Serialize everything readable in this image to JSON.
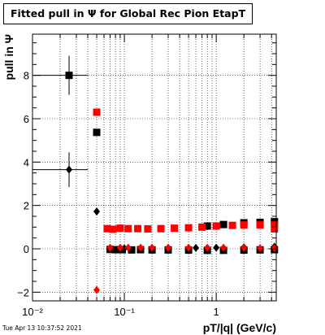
{
  "header": {
    "title": "Fitted pull in Ψ  for Global Rec Pion EtapT"
  },
  "footer": {
    "timestamp": "Tue Apr 13 10:37:52 2021"
  },
  "chart_data": {
    "type": "scatter",
    "title": "Fitted pull in Ψ  for Global Rec Pion EtapT",
    "xlabel": "pT/|q| (GeV/c)",
    "ylabel": "pull in  Ψ",
    "xscale": "log",
    "xlim": [
      0.01,
      4.5
    ],
    "ylim": [
      -2.4,
      9.9
    ],
    "grid": true,
    "x_tick_labels": [
      "10⁻²",
      "10⁻¹",
      "1"
    ],
    "y_tick_labels": [
      "−2",
      "0",
      "2",
      "4",
      "6",
      "8"
    ],
    "series": [
      {
        "marker": "square",
        "color": "#000000",
        "points": [
          {
            "x": 0.025,
            "y": 8.0,
            "xerr": [
              0.01,
              0.04
            ],
            "yerr": 0.9
          },
          {
            "x": 0.05,
            "y": 5.37
          },
          {
            "x": 0.07,
            "y": -0.03
          },
          {
            "x": 0.08,
            "y": -0.04
          },
          {
            "x": 0.095,
            "y": -0.04
          },
          {
            "x": 0.12,
            "y": -0.05
          },
          {
            "x": 0.15,
            "y": -0.04
          },
          {
            "x": 0.2,
            "y": -0.05
          },
          {
            "x": 0.3,
            "y": -0.05
          },
          {
            "x": 0.5,
            "y": -0.06
          },
          {
            "x": 0.8,
            "y": -0.07
          },
          {
            "x": 1.2,
            "y": -0.07
          },
          {
            "x": 2.0,
            "y": -0.06
          },
          {
            "x": 3.0,
            "y": -0.05
          },
          {
            "x": 4.3,
            "y": -0.04
          },
          {
            "x": 0.8,
            "y": 1.05
          },
          {
            "x": 1.2,
            "y": 1.12
          },
          {
            "x": 2.0,
            "y": 1.2
          },
          {
            "x": 3.0,
            "y": 1.22
          },
          {
            "x": 4.3,
            "y": 1.25
          }
        ]
      },
      {
        "marker": "diamond",
        "color": "#000000",
        "points": [
          {
            "x": 0.025,
            "y": 3.65,
            "xerr": [
              0.01,
              0.04
            ],
            "yerr": 0.8
          },
          {
            "x": 0.05,
            "y": 1.72
          },
          {
            "x": 0.07,
            "y": 0.02
          },
          {
            "x": 0.1,
            "y": 0.02
          },
          {
            "x": 0.15,
            "y": 0.03
          },
          {
            "x": 0.3,
            "y": 0.03
          },
          {
            "x": 0.6,
            "y": 0.04
          },
          {
            "x": 1.0,
            "y": 0.05
          },
          {
            "x": 2.0,
            "y": 0.07
          },
          {
            "x": 4.3,
            "y": 0.1
          }
        ]
      },
      {
        "marker": "square",
        "color": "#ff0000",
        "points": [
          {
            "x": 0.05,
            "y": 6.3
          },
          {
            "x": 0.065,
            "y": 0.93
          },
          {
            "x": 0.075,
            "y": 0.9
          },
          {
            "x": 0.09,
            "y": 0.95
          },
          {
            "x": 0.11,
            "y": 0.93
          },
          {
            "x": 0.14,
            "y": 0.93
          },
          {
            "x": 0.18,
            "y": 0.92
          },
          {
            "x": 0.25,
            "y": 0.93
          },
          {
            "x": 0.35,
            "y": 0.95
          },
          {
            "x": 0.5,
            "y": 0.97
          },
          {
            "x": 0.7,
            "y": 1.0
          },
          {
            "x": 1.0,
            "y": 1.05
          },
          {
            "x": 1.5,
            "y": 1.08
          },
          {
            "x": 2.0,
            "y": 1.1
          },
          {
            "x": 3.0,
            "y": 1.1
          },
          {
            "x": 4.3,
            "y": 1.1
          },
          {
            "x": 4.3,
            "y": 0.92
          }
        ]
      },
      {
        "marker": "diamond",
        "color": "#ff0000",
        "points": [
          {
            "x": 0.05,
            "y": -1.9
          },
          {
            "x": 0.07,
            "y": 0.05
          },
          {
            "x": 0.09,
            "y": 0.05
          },
          {
            "x": 0.11,
            "y": 0.05
          },
          {
            "x": 0.15,
            "y": 0.05
          },
          {
            "x": 0.2,
            "y": 0.05
          },
          {
            "x": 0.3,
            "y": 0.05
          },
          {
            "x": 0.5,
            "y": 0.05
          },
          {
            "x": 0.8,
            "y": 0.05
          },
          {
            "x": 1.2,
            "y": 0.05
          },
          {
            "x": 2.0,
            "y": 0.04
          },
          {
            "x": 3.0,
            "y": 0.03
          },
          {
            "x": 4.3,
            "y": 0.03
          }
        ]
      }
    ]
  }
}
